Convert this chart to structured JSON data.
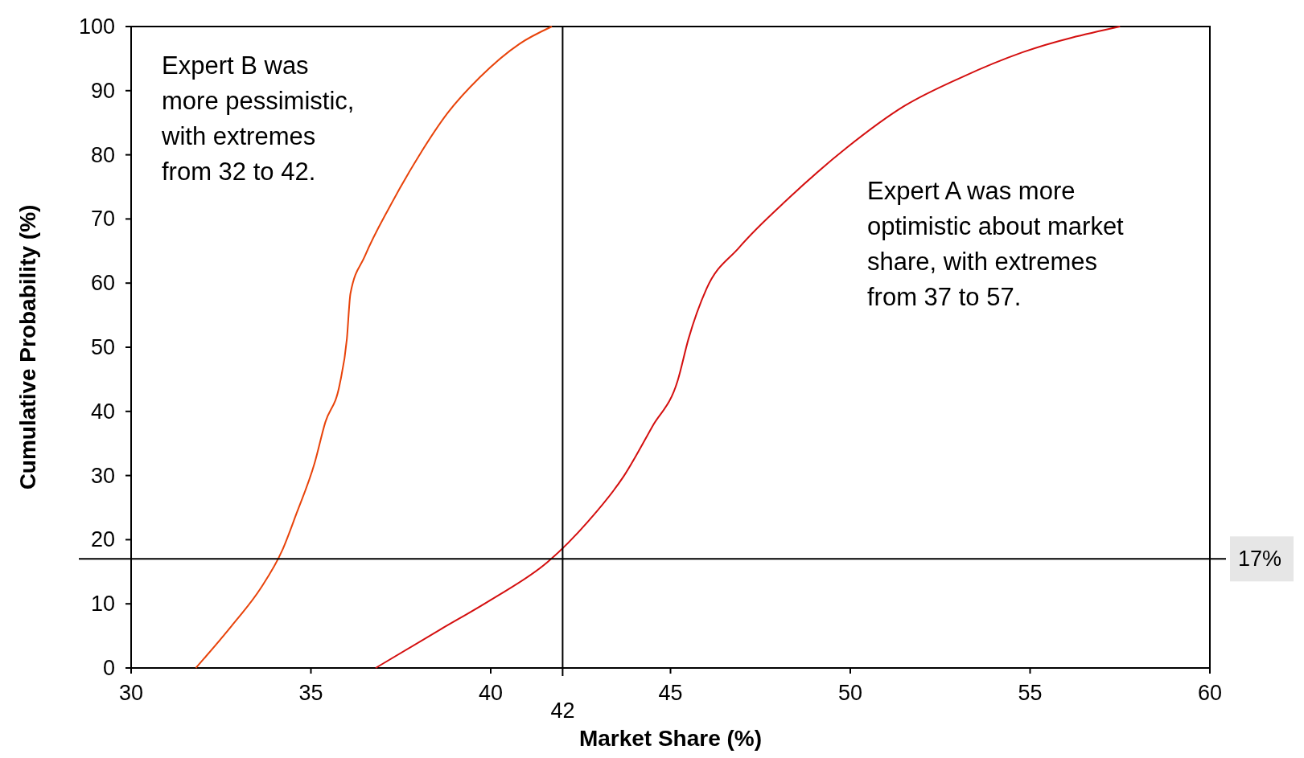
{
  "chart_data": {
    "type": "line",
    "xlabel": "Market Share (%)",
    "ylabel": "Cumulative Probability (%)",
    "xlim": [
      30,
      60
    ],
    "xticks": [
      30,
      35,
      40,
      45,
      50,
      55,
      60
    ],
    "ylim": [
      0,
      100
    ],
    "yticks": [
      0,
      10,
      20,
      30,
      40,
      50,
      60,
      70,
      80,
      90,
      100
    ],
    "grid": false,
    "marker": "none",
    "line_style": "solid",
    "series": [
      {
        "color": "#e8430a",
        "x": [
          31.8,
          32.8,
          33.6,
          34.2,
          34.6,
          35.1,
          35.4,
          35.8,
          36.0,
          36.1,
          36.5,
          37.2,
          38.0,
          38.8,
          39.7,
          40.8,
          41.7
        ],
        "values": [
          0,
          6.6,
          12.4,
          18.3,
          24.1,
          31.9,
          38.3,
          44.2,
          51.3,
          58.4,
          64.2,
          72,
          79.8,
          86.5,
          92.1,
          97.3,
          100
        ]
      },
      {
        "color": "#d40f0f",
        "x": [
          36.8,
          38.6,
          40.0,
          41.6,
          42.7,
          43.7,
          44.5,
          45.2,
          45.5,
          46.0,
          46.9,
          48.3,
          49.9,
          51.5,
          53.1,
          54.8,
          57.5
        ],
        "values": [
          0,
          6,
          10.6,
          16.6,
          22.8,
          29.9,
          37.7,
          44.8,
          51.3,
          59.1,
          65.5,
          73.3,
          81.1,
          87.6,
          92.1,
          96,
          100
        ]
      }
    ],
    "ref_lines": [
      {
        "axis": "x",
        "value": 42,
        "label": "42",
        "color": "#000000"
      },
      {
        "axis": "y",
        "value": 17,
        "label": "17%",
        "color": "#000000"
      }
    ],
    "annotations": [
      "Expert B was\nmore pessimistic,\nwith extremes\nfrom 32 to 42.",
      "Expert A was more\noptimistic about market\nshare, with extremes\nfrom 37 to 57."
    ]
  }
}
